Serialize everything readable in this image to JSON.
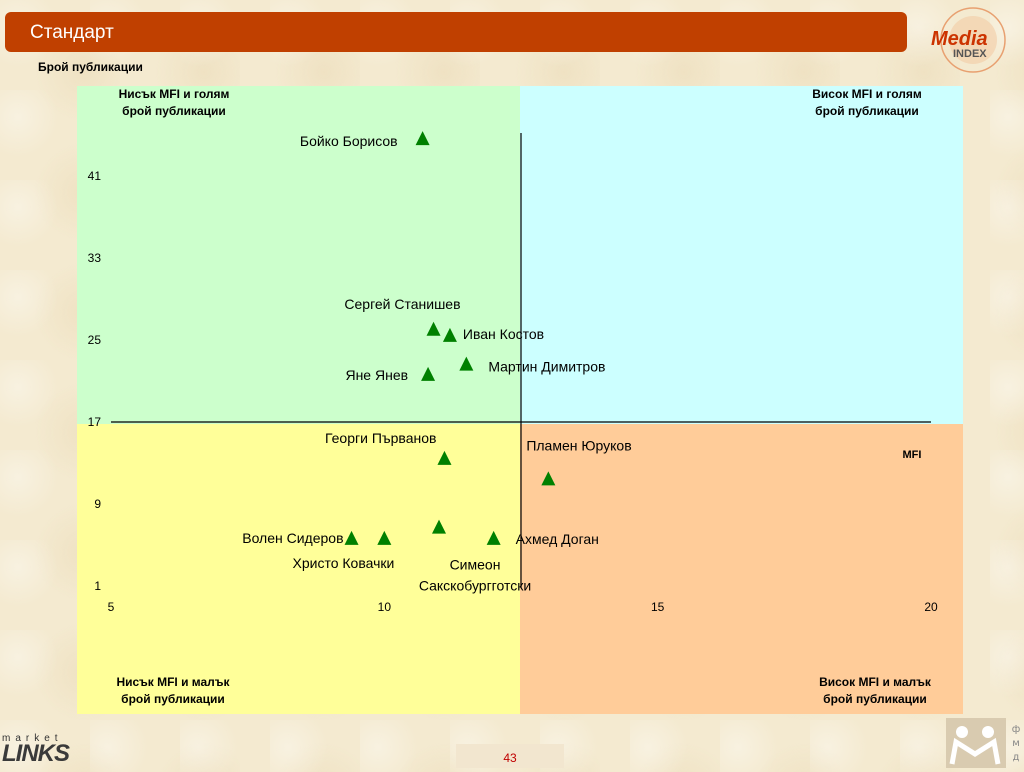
{
  "header": {
    "title": "Стандарт"
  },
  "logos": {
    "media_index_line1": "Media",
    "media_index_line2": "INDEX",
    "market_links_line1": "market",
    "market_links_line2": "LINKS",
    "fmd": "фмд"
  },
  "quadrants": {
    "top_left": [
      "Нисък MFI и голям",
      "брой публикации"
    ],
    "top_right": [
      "Висок MFI и голям",
      "брой публикации"
    ],
    "bottom_left": [
      "Нисък MFI и малък",
      "брой публикации"
    ],
    "bottom_right": [
      "Висок MFI и малък",
      "брой публикации"
    ]
  },
  "footer": {
    "page_number": "43"
  },
  "colors": {
    "title_bar": "#c04000",
    "top_left": "#ccffcc",
    "top_right": "#ccffff",
    "bottom_left": "#ffff99",
    "bottom_right": "#ffcc99",
    "marker": "#008000",
    "page_number": "#c00000"
  },
  "chart_data": {
    "type": "scatter",
    "ylabel": "Брой публикации",
    "xlabel": "MFI",
    "xlim": [
      5,
      20
    ],
    "ylim": [
      1,
      41
    ],
    "x_ticks": [
      5,
      10,
      15,
      20
    ],
    "y_ticks": [
      1,
      9,
      17,
      25,
      33,
      41
    ],
    "x_divider": 12.5,
    "y_divider": 17,
    "marker": "triangle",
    "points": [
      {
        "name": "Бойко Борисов",
        "x": 10.7,
        "y": 44.6
      },
      {
        "name": "Сергей Станишев",
        "x": 10.9,
        "y": 26.0
      },
      {
        "name": "Иван Костов",
        "x": 11.2,
        "y": 25.4
      },
      {
        "name": "Яне Янев",
        "x": 10.8,
        "y": 21.6
      },
      {
        "name": "Мартин Димитров",
        "x": 11.5,
        "y": 22.6
      },
      {
        "name": "Георги Първанов",
        "x": 11.1,
        "y": 13.4
      },
      {
        "name": "Пламен Юруков",
        "x": 13.0,
        "y": 11.4
      },
      {
        "name": "Волен Сидеров",
        "x": 9.4,
        "y": 5.6
      },
      {
        "name": "Христо Ковачки",
        "x": 10.0,
        "y": 5.6
      },
      {
        "name": "Симеон Сакскобургготски",
        "x": 11.0,
        "y": 6.7
      },
      {
        "name": "Ахмед Доган",
        "x": 12.0,
        "y": 5.6
      }
    ]
  }
}
